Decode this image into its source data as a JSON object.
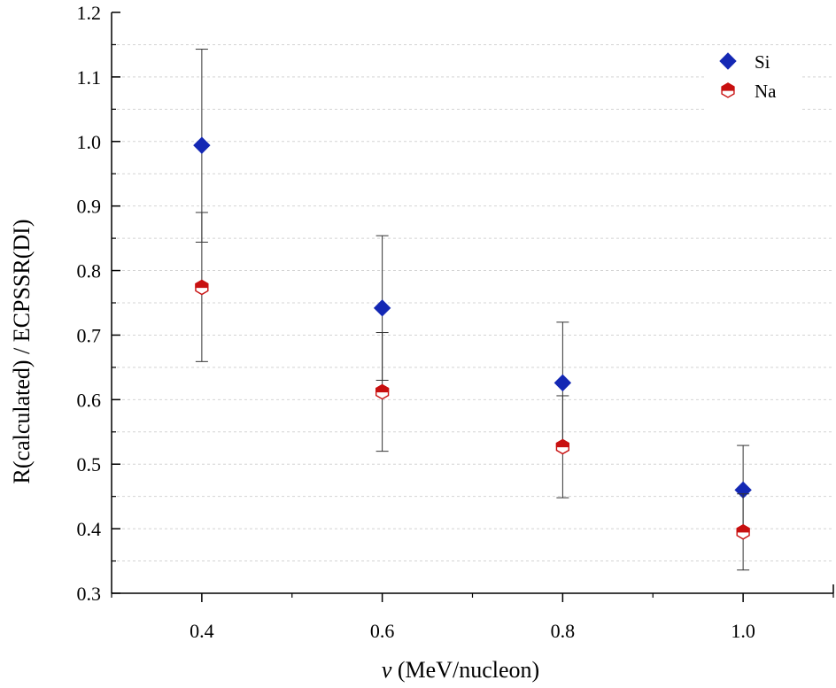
{
  "chart_data": {
    "type": "scatter",
    "title": "",
    "xlabel_symbol": "v",
    "xlabel_rest": " (MeV/nucleon)",
    "ylabel": "R(calculated) / ECPSSR(DI)",
    "xlim": [
      0.3,
      1.1
    ],
    "ylim": [
      0.3,
      1.2
    ],
    "xticks": [
      0.4,
      0.6,
      0.8,
      1.0
    ],
    "xtick_labels": [
      "0.4",
      "0.6",
      "0.8",
      "1.0"
    ],
    "yticks": [
      0.3,
      0.4,
      0.5,
      0.6,
      0.7,
      0.8,
      0.9,
      1.0,
      1.1,
      1.2
    ],
    "ytick_labels": [
      "0.3",
      "0.4",
      "0.5",
      "0.6",
      "0.7",
      "0.8",
      "0.9",
      "1.0",
      "1.1",
      "1.2"
    ],
    "grid": true,
    "legend_position": "top-right",
    "series": [
      {
        "name": "Si",
        "marker": "diamond",
        "color": "#1428b4",
        "x": [
          0.4,
          0.6,
          0.8,
          1.0
        ],
        "y": [
          0.994,
          0.742,
          0.626,
          0.46
        ],
        "err_low": [
          0.844,
          0.63,
          0.532,
          0.392
        ],
        "err_high": [
          1.143,
          0.854,
          0.72,
          0.529
        ]
      },
      {
        "name": "Na",
        "marker": "half-filled-hexagon",
        "color": "#c81010",
        "x": [
          0.4,
          0.6,
          0.8,
          1.0
        ],
        "y": [
          0.774,
          0.612,
          0.527,
          0.395
        ],
        "err_low": [
          0.659,
          0.52,
          0.448,
          0.336
        ],
        "err_high": [
          0.89,
          0.704,
          0.606,
          0.454
        ]
      }
    ]
  }
}
